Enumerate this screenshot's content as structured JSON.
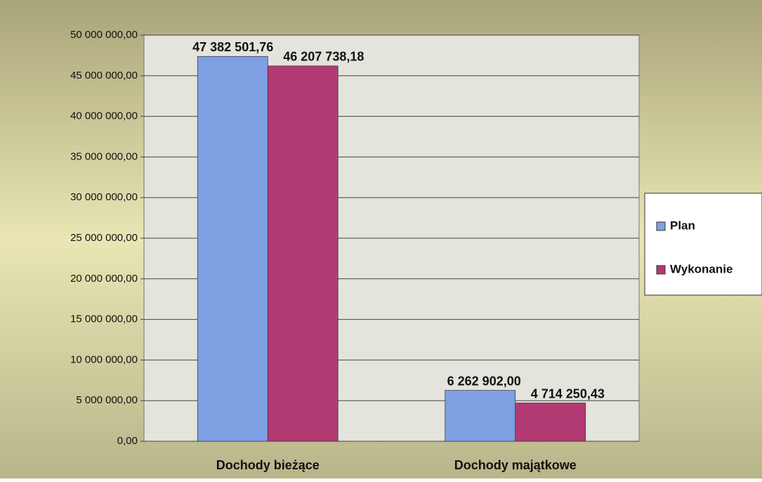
{
  "chart_data": {
    "type": "bar",
    "categories": [
      "Dochody bieżące",
      "Dochody majątkowe"
    ],
    "series": [
      {
        "name": "Plan",
        "color": "#7f9fe3",
        "values": [
          47382501.76,
          6262902.0
        ],
        "value_labels": [
          "47 382 501,76",
          "6 262 902,00"
        ]
      },
      {
        "name": "Wykonanie",
        "color": "#b23a72",
        "values": [
          46207738.18,
          4714250.43
        ],
        "value_labels": [
          "46 207 738,18",
          "4 714 250,43"
        ]
      }
    ],
    "ylim": [
      0,
      50000000
    ],
    "yticks": [
      {
        "value": 0,
        "label": "0,00"
      },
      {
        "value": 5000000,
        "label": "5 000 000,00"
      },
      {
        "value": 10000000,
        "label": "10 000 000,00"
      },
      {
        "value": 15000000,
        "label": "15 000 000,00"
      },
      {
        "value": 20000000,
        "label": "20 000 000,00"
      },
      {
        "value": 25000000,
        "label": "25 000 000,00"
      },
      {
        "value": 30000000,
        "label": "30 000 000,00"
      },
      {
        "value": 35000000,
        "label": "35 000 000,00"
      },
      {
        "value": 40000000,
        "label": "40 000 000,00"
      },
      {
        "value": 45000000,
        "label": "45 000 000,00"
      },
      {
        "value": 50000000,
        "label": "50 000 000,00"
      }
    ],
    "grid": true,
    "legend": "right"
  }
}
